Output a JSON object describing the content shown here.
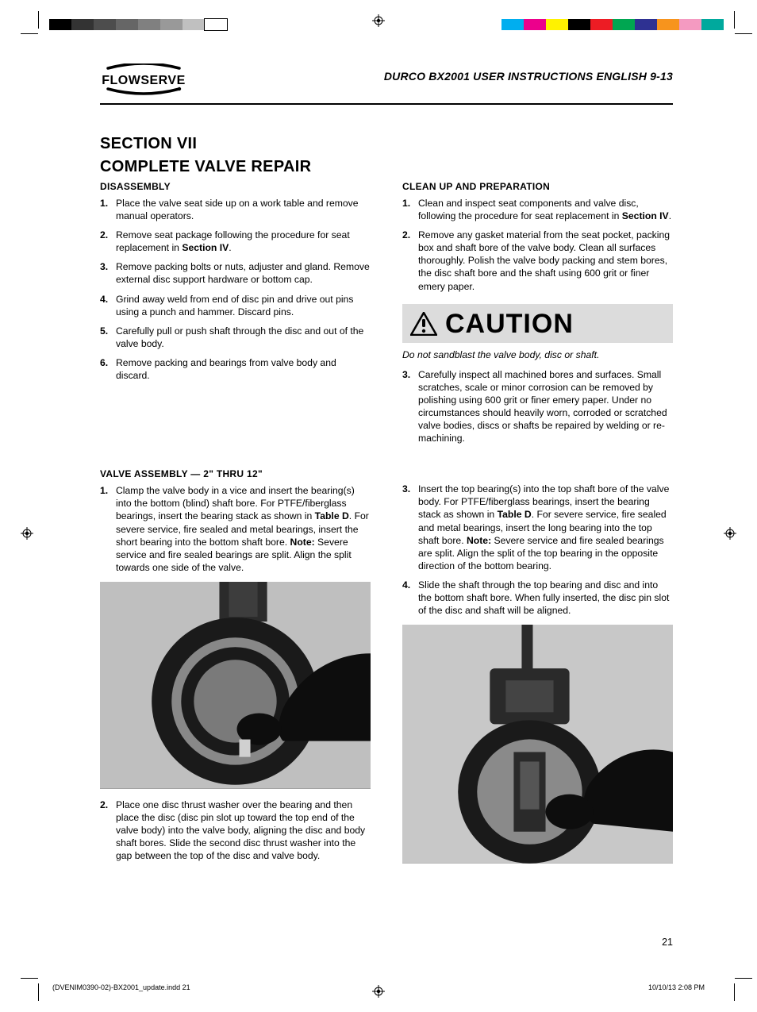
{
  "printer_marks": {
    "left_swatches": [
      "#000000",
      "#333333",
      "#4d4d4d",
      "#666666",
      "#808080",
      "#999999",
      "#c0c0c0",
      "#ffffff"
    ],
    "right_swatches": [
      "#00aeef",
      "#ec008c",
      "#fff200",
      "#000000",
      "#ed1c24",
      "#00a651",
      "#2e3192",
      "#f7941d",
      "#f49ac1",
      "#00a99d"
    ]
  },
  "header": {
    "brand": "FLOWSERVE",
    "doc_title": "DURCO BX2001 USER INSTRUCTIONS ENGLISH 9-13"
  },
  "section": {
    "label": "SECTION VII",
    "title": "COMPLETE VALVE REPAIR"
  },
  "disassembly": {
    "heading": "DISASSEMBLY",
    "items": [
      "Place the valve seat side up on a work table and remove manual operators.",
      "Remove seat package following the procedure for seat replacement in ",
      "Remove packing bolts or nuts, adjuster and gland. Remove external disc support hardware or bottom cap.",
      "Grind away weld from end of disc pin and drive out pins using a punch and hammer. Discard pins.",
      "Carefully pull or push shaft through the disc and out of the valve body.",
      "Remove packing and bearings from valve body and discard."
    ],
    "item2_bold": "Section IV",
    "item2_tail": "."
  },
  "cleanup": {
    "heading": "CLEAN UP AND PREPARATION",
    "items_pre": [
      "Clean and inspect seat components and valve disc, following the procedure for seat replacement in ",
      "Remove any gasket material from the seat pocket, packing box and shaft bore of the valve body. Clean all surfaces thoroughly. Polish the valve body packing and stem bores, the disc shaft bore and the shaft using 600 grit or finer emery paper."
    ],
    "item1_bold": "Section IV",
    "item1_tail": ".",
    "caution_label": "CAUTION",
    "caution_note": "Do not sandblast the valve body, disc or shaft.",
    "items_post": [
      "Carefully inspect all machined bores and surfaces. Small scratches, scale or minor corrosion can be removed by polishing using 600 grit or finer emery paper. Under no circumstances should heavily worn, corroded or scratched valve bodies, discs or shafts be repaired by welding or re-machining."
    ]
  },
  "assembly": {
    "heading": "VALVE ASSEMBLY — 2\" THRU 12\"",
    "left": {
      "item1_pre": "Clamp the valve body in a vice and insert the bearing(s) into the bottom (blind) shaft bore. For PTFE/fiberglass bearings, insert the bearing stack as shown in ",
      "item1_bold1": "Table D",
      "item1_mid": ". For severe service, fire sealed and metal bearings, insert the short bearing into the bottom shaft bore. ",
      "item1_bold2": "Note:",
      "item1_post": " Severe service and fire sealed bearings are split. Align the split towards one side of the valve.",
      "item2": "Place one disc thrust washer over the bearing and then place the disc (disc pin slot up toward the top end of the valve body) into the valve body, aligning the disc and body shaft bores. Slide the second disc thrust washer into the gap between the top of the disc and valve body."
    },
    "right": {
      "item3_pre": "Insert the top bearing(s) into the top shaft bore of the valve body. For PTFE/fiberglass bearings, insert the bearing stack as shown in ",
      "item3_bold1": "Table D",
      "item3_mid": ". For severe service, fire sealed and metal bearings, insert the long bearing into the top shaft bore. ",
      "item3_bold2": "Note:",
      "item3_post": " Severe service and fire sealed bearings are split. Align the split of the top bearing in the opposite direction of the bottom bearing.",
      "item4": "Slide the shaft through the top bearing and disc and into the bottom shaft bore. When fully inserted, the disc pin slot of the disc and shaft will be aligned."
    }
  },
  "page_number": "21",
  "footer": {
    "left": "(DVENIM0390-02)-BX2001_update.indd   21",
    "right": "10/10/13   2:08 PM"
  }
}
